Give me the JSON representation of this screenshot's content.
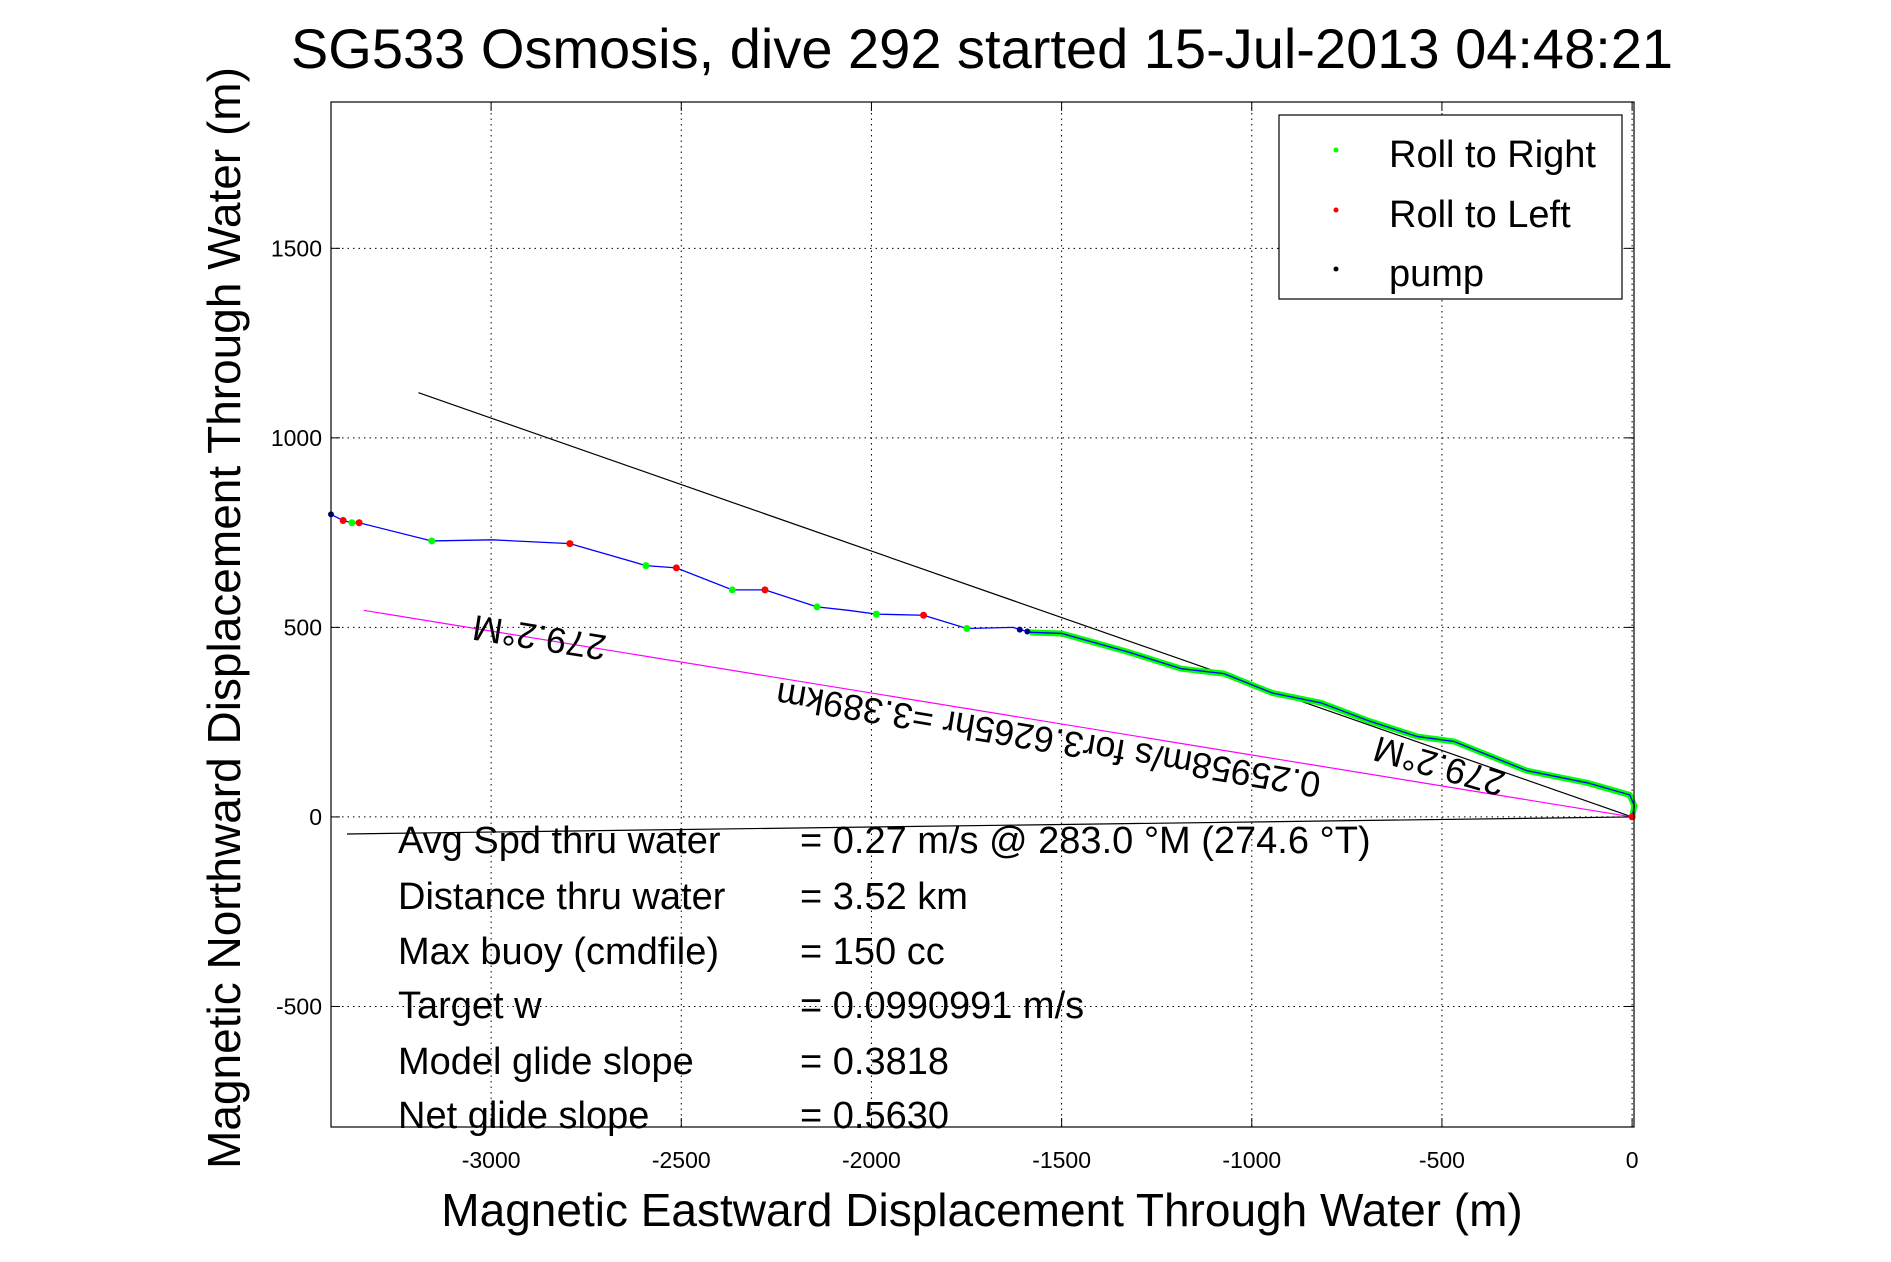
{
  "chart_data": {
    "type": "line",
    "title": "SG533 Osmosis, dive 292 started 15-Jul-2013 04:48:21",
    "xlabel": "Magnetic Eastward Displacement Through Water (m)",
    "ylabel": "Magnetic Northward Displacement Through Water (m)",
    "xlim": [
      -3421,
      5
    ],
    "ylim": [
      -818,
      1886
    ],
    "grid": true,
    "xticks": [
      -3000,
      -2500,
      -2000,
      -1500,
      -1000,
      -500,
      0
    ],
    "yticks": [
      -500,
      0,
      500,
      1000,
      1500
    ],
    "legend": {
      "placement": "top-right",
      "entries": [
        {
          "label": "Roll to Right",
          "color": "#00ff00"
        },
        {
          "label": "Roll to Left",
          "color": "#ff0000"
        },
        {
          "label": "pump",
          "color": "#000000"
        }
      ]
    },
    "track": {
      "color": "#0000ff",
      "x": [
        -3421,
        -3389,
        -3366,
        -3347,
        -3156,
        -2997,
        -2793,
        -2593,
        -2513,
        -2366,
        -2280,
        -2143,
        -2061,
        -1987,
        -1863,
        -1749,
        -1628,
        -1583,
        -1500,
        -1328,
        -1185,
        -1073,
        -946,
        -818,
        -691,
        -564,
        -468,
        -277,
        -118,
        -6,
        6,
        0
      ],
      "y": [
        798,
        782,
        776,
        776,
        728,
        731,
        721,
        663,
        657,
        599,
        599,
        554,
        545,
        535,
        532,
        497,
        500,
        487,
        484,
        436,
        391,
        378,
        327,
        301,
        253,
        212,
        199,
        122,
        90,
        58,
        29,
        0
      ]
    },
    "roll_right_segment": {
      "x_from": -1583,
      "x_to": 6
    },
    "roll_right_points": {
      "x": [
        -3366,
        -3156,
        -2593,
        -2366,
        -2143,
        -1987,
        -1749
      ],
      "y": [
        776,
        728,
        663,
        599,
        554,
        535,
        497
      ]
    },
    "roll_left_points": {
      "x": [
        -3389,
        -3347,
        -2793,
        -2513,
        -2280,
        -1863,
        0
      ],
      "y": [
        782,
        776,
        721,
        657,
        599,
        532,
        0
      ]
    },
    "pump_points": {
      "x": [
        -3421,
        -1610,
        -1590
      ],
      "y": [
        798,
        494,
        489
      ]
    },
    "lines": [
      {
        "name": "heading-line",
        "color": "#000000",
        "x": [
          -3191,
          0
        ],
        "y": [
          1119,
          0
        ]
      },
      {
        "name": "net-displacement-line",
        "color": "#ff00ff",
        "x": [
          -3335,
          0
        ],
        "y": [
          545,
          0
        ]
      },
      {
        "name": "current-line",
        "color": "#000000",
        "x": [
          -3379,
          0
        ],
        "y": [
          -45,
          0
        ]
      }
    ],
    "annotations": [
      {
        "text": "279.2°M",
        "x": -2868,
        "y": 505,
        "angle": 189
      },
      {
        "text": "0.25958m/s for3.6265hr =3.389km",
        "x": -1530,
        "y": 235,
        "angle": 189.5
      },
      {
        "text": "279.2°M",
        "x": -498,
        "y": 165,
        "angle": 196
      }
    ],
    "stats": [
      {
        "label": "Avg Spd thru water",
        "value": "=  0.27 m/s @ 283.0 °M (274.6 °T)"
      },
      {
        "label": "Distance thru water",
        "value": "=  3.52 km"
      },
      {
        "label": "Max buoy (cmdfile)",
        "value": "= 150 cc"
      },
      {
        "label": "Target w",
        "value": "= 0.0990991 m/s"
      },
      {
        "label": "Model glide slope",
        "value": "= 0.3818"
      },
      {
        "label": "Net glide slope",
        "value": "= 0.5630"
      }
    ]
  }
}
